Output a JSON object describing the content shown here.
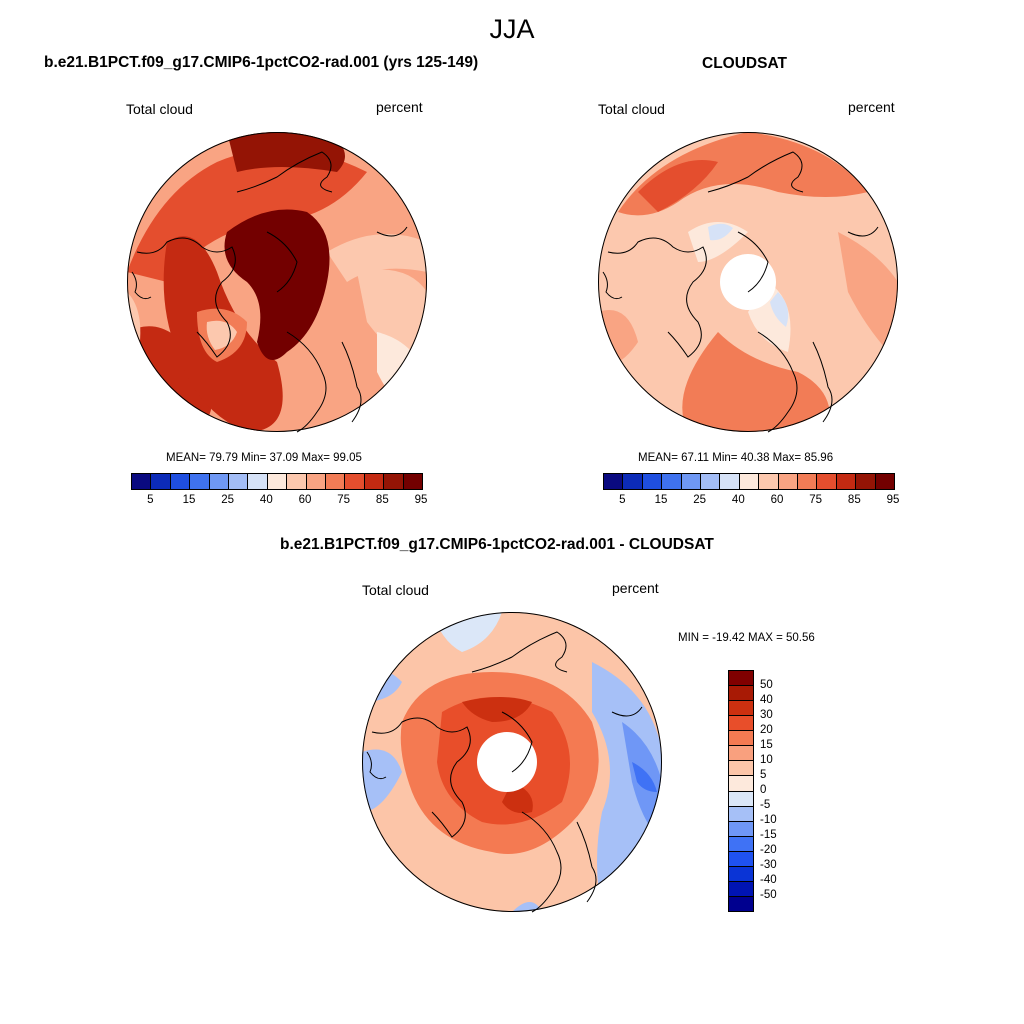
{
  "figure": {
    "season": "JJA"
  },
  "panels": [
    {
      "title": "b.e21.B1PCT.f09_g17.CMIP6-1pctCO2-rad.001 (yrs 125-149)",
      "left_label": "Total cloud",
      "right_label": "percent",
      "stats": "MEAN=  79.79  Min=  37.09  Max=  99.05",
      "map_regions": "dark-red central Arctic, red mid-latitudes, light pink North Atlantic"
    },
    {
      "title": "CLOUDSAT",
      "left_label": "Total cloud",
      "right_label": "percent",
      "stats": "MEAN=  67.11  Min=  40.38  Max=  85.96",
      "map_regions": "salmon-red field, white pole hole"
    },
    {
      "title": "b.e21.B1PCT.f09_g17.CMIP6-1pctCO2-rad.001 - CLOUDSAT",
      "left_label": "Total cloud",
      "right_label": "percent",
      "stats": "MIN = -19.42 MAX =  50.56",
      "map_regions": "orange-red Arctic ring, blue North Pacific, white pole hole"
    }
  ],
  "colorbar_top": {
    "colors": [
      "#0a0a80",
      "#0c2bb8",
      "#1f4fe0",
      "#3f72ef",
      "#6f98f4",
      "#a3bdf6",
      "#d6e2f7",
      "#fde9dc",
      "#fcc8ae",
      "#f9a483",
      "#f27c56",
      "#e44e2e",
      "#c42a12",
      "#941405",
      "#730000"
    ],
    "tick_labels": [
      "5",
      "15",
      "25",
      "40",
      "60",
      "75",
      "85",
      "95"
    ]
  },
  "colorbar_diff": {
    "colors": [
      "#00008f",
      "#0014b3",
      "#0a34d6",
      "#1f52f0",
      "#3f72f5",
      "#6f97f6",
      "#a6c0f7",
      "#dbe7f8",
      "#fde9dc",
      "#fcc5a8",
      "#f9a07e",
      "#f47a52",
      "#e84e2a",
      "#cc3010",
      "#a81a05",
      "#800000"
    ],
    "tick_labels": [
      "50",
      "40",
      "30",
      "20",
      "15",
      "10",
      "5",
      "0",
      "-5",
      "-10",
      "-15",
      "-20",
      "-30",
      "-40",
      "-50"
    ]
  }
}
